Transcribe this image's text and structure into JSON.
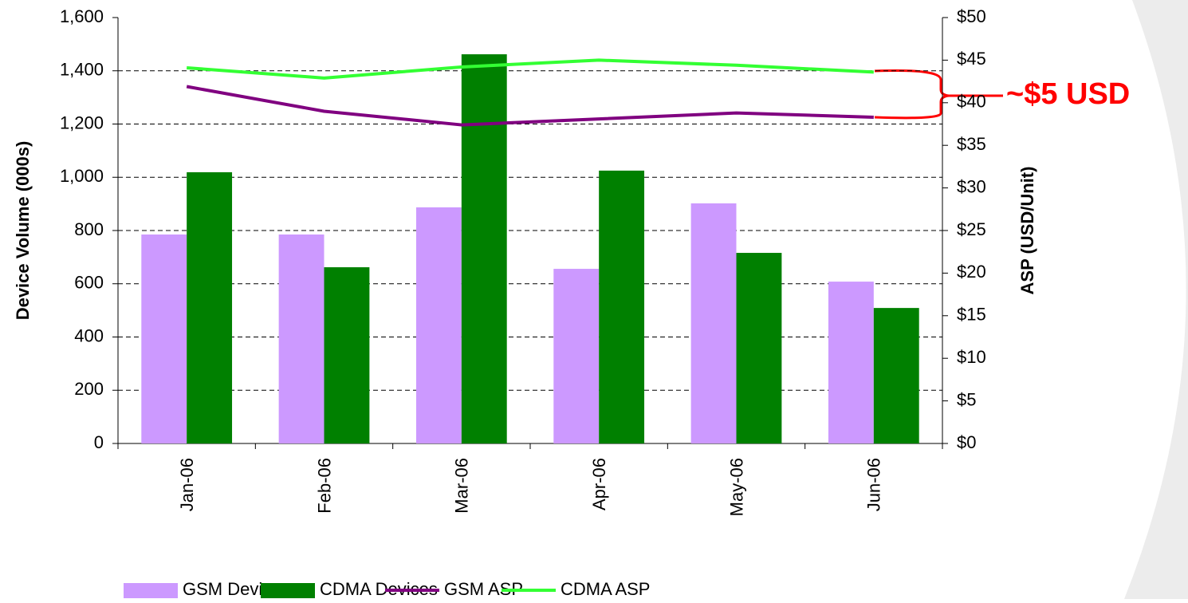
{
  "chart_data": {
    "type": "bar-line",
    "categories": [
      "Jan-06",
      "Feb-06",
      "Mar-06",
      "Apr-06",
      "May-06",
      "Jun-06"
    ],
    "series": [
      {
        "name": "GSM Devices",
        "color": "#cc99ff",
        "type": "bar",
        "values": [
          785,
          785,
          887,
          656,
          902,
          608
        ]
      },
      {
        "name": "CDMA Devices",
        "color": "#008000",
        "type": "bar",
        "values": [
          1019,
          662,
          1462,
          1025,
          716,
          509
        ]
      },
      {
        "name": "GSM ASP",
        "color": "#800080",
        "type": "line",
        "axis": "y2",
        "values": [
          41.9,
          39.0,
          37.4,
          38.1,
          38.8,
          38.3
        ]
      },
      {
        "name": "CDMA ASP",
        "color": "#33ff33",
        "type": "line",
        "axis": "y2",
        "values": [
          44.1,
          42.9,
          44.2,
          45.0,
          44.4,
          43.6
        ]
      }
    ],
    "y_label": "Device Volume (000s)",
    "y2_label": "ASP (USD/Unit)",
    "ylim": [
      0,
      1600
    ],
    "yticks": [
      0,
      200,
      400,
      600,
      800,
      {
        "value": 1000,
        "label": "1,000"
      },
      {
        "value": 1200,
        "label": "1,200"
      },
      {
        "value": 1400,
        "label": "1,400"
      },
      {
        "value": 1600,
        "label": "1,600"
      }
    ],
    "y2lim": [
      0,
      50
    ],
    "y2ticks": [
      {
        "value": 0,
        "label": "$0"
      },
      {
        "value": 5,
        "label": "$5"
      },
      {
        "value": 10,
        "label": "$10"
      },
      {
        "value": 15,
        "label": "$15"
      },
      {
        "value": 20,
        "label": "$20"
      },
      {
        "value": 25,
        "label": "$25"
      },
      {
        "value": 30,
        "label": "$30"
      },
      {
        "value": 35,
        "label": "$35"
      },
      {
        "value": 40,
        "label": "$40"
      },
      {
        "value": 45,
        "label": "$45"
      },
      {
        "value": 50,
        "label": "$50"
      }
    ],
    "grid": true,
    "legend": "bottom",
    "annotations": [
      "~$5 USD"
    ]
  }
}
